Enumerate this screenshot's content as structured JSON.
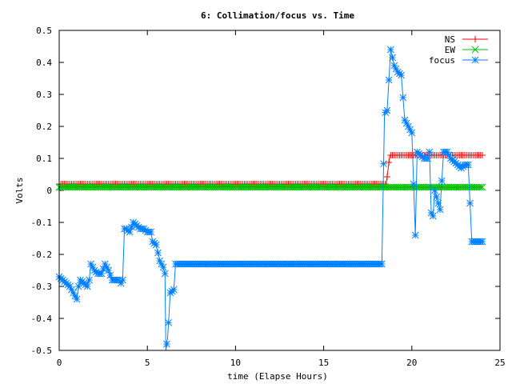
{
  "chart_data": {
    "type": "line",
    "title": "6: Collimation/focus vs. Time",
    "xlabel": "time (Elapse Hours)",
    "ylabel": "Volts",
    "xlim": [
      0,
      25
    ],
    "ylim": [
      -0.5,
      0.5
    ],
    "xticks": [
      0,
      5,
      10,
      15,
      20,
      25
    ],
    "xtick_labels": [
      "0",
      "5",
      "10",
      "15",
      "20",
      "25"
    ],
    "yticks": [
      -0.5,
      -0.4,
      -0.3,
      -0.2,
      -0.1,
      0,
      0.1,
      0.2,
      0.3,
      0.4,
      0.5
    ],
    "ytick_labels": [
      "-0.5",
      "-0.4",
      "-0.3",
      "-0.2",
      "-0.1",
      "0",
      "0.1",
      "0.2",
      "0.3",
      "0.4",
      "0.5"
    ],
    "grid": false,
    "legend_position": "top-right",
    "series": [
      {
        "name": "NS",
        "color": "#ff0000",
        "marker": "plus",
        "x": [
          0,
          18.55,
          18.75,
          24.0
        ],
        "y": [
          0.02,
          0.02,
          0.11,
          0.11
        ]
      },
      {
        "name": "EW",
        "color": "#00c000",
        "marker": "cross",
        "x": [
          0,
          24.0
        ],
        "y": [
          0.01,
          0.01
        ]
      },
      {
        "name": "focus",
        "color": "#0080ff",
        "marker": "star",
        "x": [
          0.0,
          0.2,
          0.4,
          0.6,
          0.8,
          0.9,
          1.0,
          1.1,
          1.2,
          1.4,
          1.6,
          1.7,
          1.8,
          2.0,
          2.2,
          2.4,
          2.6,
          2.8,
          3.0,
          3.2,
          3.4,
          3.5,
          3.6,
          3.7,
          3.8,
          4.0,
          4.2,
          4.4,
          4.6,
          4.8,
          5.0,
          5.2,
          5.3,
          5.5,
          5.7,
          5.9,
          6.0,
          6.05,
          6.15,
          6.3,
          6.5,
          6.6,
          7.0,
          10.0,
          15.0,
          18.3,
          18.45,
          18.6,
          18.8,
          19.0,
          19.2,
          19.4,
          19.6,
          19.8,
          20.0,
          20.2,
          20.3,
          20.5,
          20.7,
          20.9,
          21.0,
          21.1,
          21.2,
          21.3,
          21.4,
          21.5,
          21.6,
          21.8,
          22.0,
          22.2,
          22.4,
          22.6,
          22.8,
          23.0,
          23.2,
          23.4,
          23.6,
          23.8,
          24.0
        ],
        "y": [
          -0.27,
          -0.28,
          -0.29,
          -0.3,
          -0.32,
          -0.33,
          -0.34,
          -0.3,
          -0.28,
          -0.29,
          -0.3,
          -0.28,
          -0.23,
          -0.25,
          -0.26,
          -0.26,
          -0.23,
          -0.25,
          -0.28,
          -0.28,
          -0.28,
          -0.29,
          -0.28,
          -0.12,
          -0.12,
          -0.13,
          -0.1,
          -0.11,
          -0.12,
          -0.12,
          -0.13,
          -0.13,
          -0.16,
          -0.17,
          -0.22,
          -0.24,
          -0.26,
          -0.5,
          -0.46,
          -0.32,
          -0.31,
          -0.23,
          -0.23,
          -0.23,
          -0.23,
          -0.23,
          0.24,
          0.25,
          0.44,
          0.39,
          0.37,
          0.36,
          0.22,
          0.2,
          0.18,
          -0.14,
          0.12,
          0.11,
          0.1,
          0.1,
          0.12,
          -0.07,
          -0.08,
          0.0,
          -0.02,
          -0.04,
          -0.06,
          0.12,
          0.12,
          0.1,
          0.09,
          0.08,
          0.07,
          0.08,
          0.08,
          -0.16,
          -0.16,
          -0.16,
          -0.16
        ]
      }
    ]
  }
}
